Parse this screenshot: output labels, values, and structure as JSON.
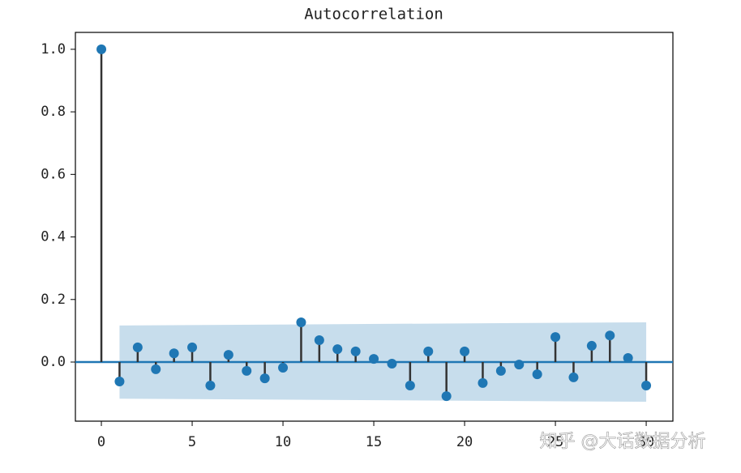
{
  "chart_data": {
    "type": "stem",
    "title": "Autocorrelation",
    "x": [
      0,
      1,
      2,
      3,
      4,
      5,
      6,
      7,
      8,
      9,
      10,
      11,
      12,
      13,
      14,
      15,
      16,
      17,
      18,
      19,
      20,
      21,
      22,
      23,
      24,
      25,
      26,
      27,
      28,
      29,
      30
    ],
    "values": [
      1.0,
      -0.062,
      0.047,
      -0.023,
      0.028,
      0.047,
      -0.075,
      0.023,
      -0.028,
      -0.052,
      -0.018,
      0.127,
      0.07,
      0.041,
      0.034,
      0.01,
      -0.005,
      -0.075,
      0.034,
      -0.109,
      0.034,
      -0.067,
      -0.028,
      -0.008,
      -0.039,
      0.08,
      -0.049,
      0.052,
      0.085,
      0.013,
      -0.075
    ],
    "color": "#1f77b4",
    "stem_color": "#333333",
    "band": {
      "x": [
        1,
        30
      ],
      "upper": [
        0.117,
        0.127
      ],
      "lower": [
        -0.117,
        -0.127
      ],
      "color": "#1f77b4"
    },
    "xlim": [
      -1.43,
      31.47
    ],
    "ylim": [
      -0.189,
      1.054
    ],
    "xticks": [
      0,
      5,
      10,
      15,
      20,
      25,
      30
    ],
    "yticks": [
      {
        "value": 0,
        "label": "0.0"
      },
      0.2,
      0.4,
      0.6,
      0.8,
      {
        "value": 1,
        "label": "1.0"
      }
    ],
    "grid": false
  },
  "watermark": "知乎 @大话数据分析"
}
